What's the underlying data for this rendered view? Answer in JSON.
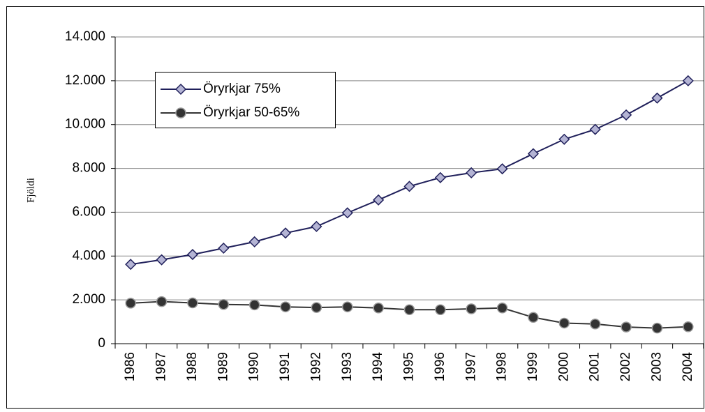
{
  "chart_data": {
    "type": "line",
    "y_label": "Fjöldi",
    "categories": [
      "1986",
      "1987",
      "1988",
      "1989",
      "1990",
      "1991",
      "1992",
      "1993",
      "1994",
      "1995",
      "1996",
      "1997",
      "1998",
      "1999",
      "2000",
      "2001",
      "2002",
      "2003",
      "2004"
    ],
    "series": [
      {
        "name": "Öryrkjar 75%",
        "color": "#1f1f5a",
        "marker": "diamond",
        "marker_fill": "#b4b4d4",
        "values": [
          3620,
          3830,
          4070,
          4360,
          4650,
          5050,
          5350,
          5970,
          6560,
          7180,
          7580,
          7800,
          7980,
          8670,
          9330,
          9780,
          10440,
          11210,
          12000
        ]
      },
      {
        "name": "Öryrkjar 50-65%",
        "color": "#333333",
        "marker": "circle",
        "marker_fill": "#333333",
        "values": [
          1850,
          1920,
          1860,
          1790,
          1770,
          1680,
          1650,
          1680,
          1630,
          1550,
          1550,
          1590,
          1630,
          1200,
          940,
          900,
          760,
          710,
          770
        ]
      }
    ],
    "ylim": [
      0,
      14000
    ],
    "yticks": [
      0,
      {
        "value": 2000,
        "label": "2.000"
      },
      {
        "value": 4000,
        "label": "4.000"
      },
      {
        "value": 6000,
        "label": "6.000"
      },
      {
        "value": 8000,
        "label": "8.000"
      },
      {
        "value": 10000,
        "label": "10.000"
      },
      {
        "value": 12000,
        "label": "12.000"
      },
      {
        "value": 14000,
        "label": "14.000"
      }
    ],
    "grid": true,
    "legend": "upper left"
  }
}
